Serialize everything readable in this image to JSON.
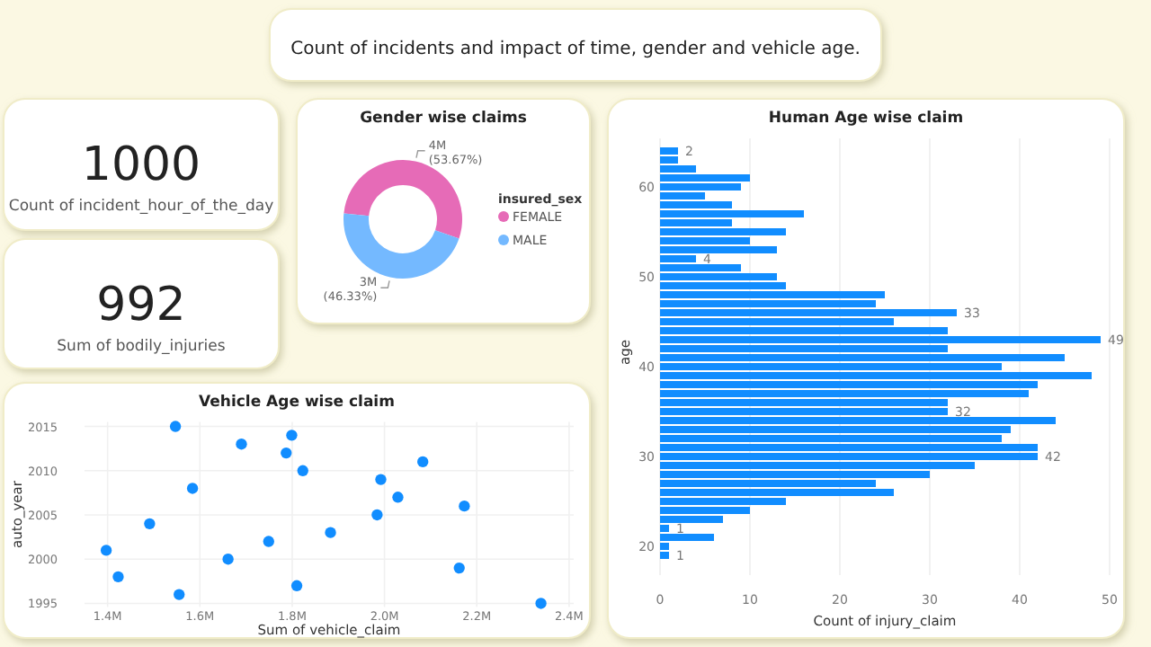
{
  "chart_data": [
    {
      "type": "other",
      "title": "Count of incidents and impact of time, gender and vehicle age."
    },
    {
      "type": "other",
      "annotations": [
        "1000",
        "Count of incident_hour_of_the_day"
      ]
    },
    {
      "type": "donut",
      "title": "Gender wise claims",
      "categories": [
        "FEMALE",
        "MALE"
      ],
      "values": [
        53.67,
        46.33
      ],
      "colors": [
        "#e66bb7",
        "#74b9ff"
      ],
      "value_labels": [
        "4M (53.67%)",
        "3M (46.33%)"
      ],
      "legend_title": "insured_sex",
      "legend": "right"
    },
    {
      "type": "bar",
      "orientation": "horizontal",
      "title": "Human Age wise claim",
      "xlabel": "Count of injury_claim",
      "ylabel": "age",
      "color": "#118dff",
      "grid": "x",
      "xlim": [
        0,
        50
      ],
      "xticks": [
        0,
        10,
        20,
        30,
        40,
        50
      ],
      "categories": [
        null,
        null,
        null,
        null,
        "60",
        null,
        null,
        null,
        null,
        null,
        null,
        null,
        null,
        null,
        "50",
        null,
        null,
        null,
        null,
        null,
        null,
        null,
        null,
        null,
        "40",
        null,
        null,
        null,
        null,
        null,
        null,
        null,
        null,
        null,
        "30",
        null,
        null,
        null,
        null,
        null,
        null,
        null,
        null,
        null,
        "20",
        null
      ],
      "values": [
        2,
        2,
        4,
        10,
        9,
        5,
        8,
        16,
        8,
        14,
        10,
        13,
        4,
        9,
        13,
        14,
        25,
        24,
        33,
        26,
        32,
        49,
        32,
        45,
        38,
        48,
        42,
        41,
        32,
        32,
        44,
        39,
        38,
        42,
        42,
        35,
        30,
        24,
        26,
        14,
        10,
        7,
        1,
        6,
        1,
        1
      ],
      "value_labels": [
        "2",
        null,
        null,
        null,
        null,
        null,
        null,
        null,
        null,
        null,
        null,
        null,
        "4",
        null,
        null,
        null,
        null,
        null,
        "33",
        null,
        null,
        "49",
        null,
        null,
        null,
        null,
        null,
        null,
        null,
        "32",
        null,
        null,
        null,
        null,
        "42",
        null,
        null,
        null,
        null,
        null,
        null,
        null,
        "1",
        null,
        null,
        "1"
      ]
    },
    {
      "type": "other",
      "annotations": [
        "992",
        "Sum of bodily_injuries"
      ]
    },
    {
      "type": "scatter",
      "title": "Vehicle Age wise claim",
      "xlabel": "Sum of vehicle_claim",
      "ylabel": "auto_year",
      "color": "#118dff",
      "marker": "circle",
      "grid": true,
      "xlim": [
        1350000,
        2410000
      ],
      "xticks": [
        {
          "value": 1400000,
          "label": "1.4M"
        },
        {
          "value": 1600000,
          "label": "1.6M"
        },
        {
          "value": 1800000,
          "label": "1.8M"
        },
        {
          "value": 2000000,
          "label": "2.0M"
        },
        {
          "value": 2200000,
          "label": "2.2M"
        },
        {
          "value": 2400000,
          "label": "2.4M"
        }
      ],
      "ylim": [
        1994.6,
        2015.5
      ],
      "yticks": [
        1995,
        2000,
        2005,
        2010,
        2015
      ],
      "x": [
        1547000,
        1690000,
        1799000,
        1787000,
        1823000,
        1584000,
        1491000,
        1397000,
        1423000,
        1555000,
        1661000,
        1749000,
        1810000,
        1883000,
        1992000,
        1984000,
        2029000,
        2083000,
        2173000,
        2162000,
        2339000
      ],
      "values": [
        2015,
        2013,
        2014,
        2012,
        2010,
        2008,
        2004,
        2001,
        1998,
        1996,
        2000,
        2002,
        1997,
        2003,
        2009,
        2005,
        2007,
        2011,
        2006,
        1999,
        1995
      ]
    }
  ]
}
